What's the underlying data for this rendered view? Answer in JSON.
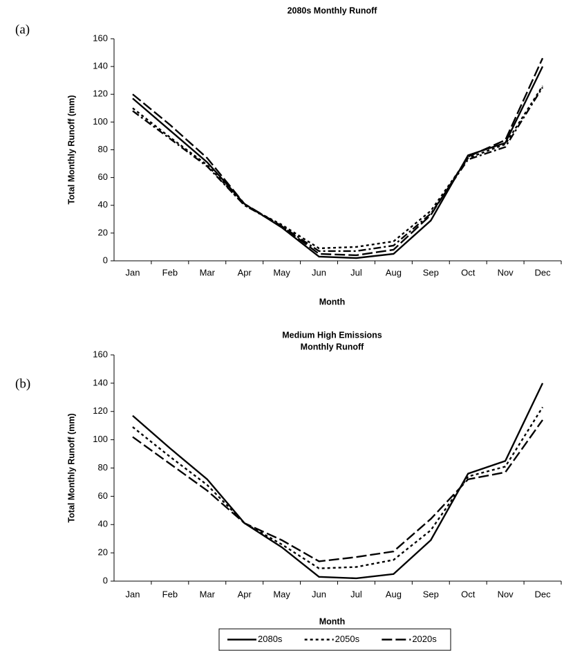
{
  "chart_data": [
    {
      "type": "line",
      "panel_label": "(a)",
      "title": "2080s Monthly Runoff",
      "x_label": "Month",
      "y_label": "Total Monthly Runoff (mm)",
      "categories": [
        "Jan",
        "Feb",
        "Mar",
        "Apr",
        "May",
        "Jun",
        "Jul",
        "Aug",
        "Sep",
        "Oct",
        "Nov",
        "Dec"
      ],
      "ylim": [
        0,
        160
      ],
      "yticks": [
        0,
        20,
        40,
        60,
        80,
        100,
        120,
        140,
        160
      ],
      "grid": false,
      "series": [
        {
          "color": "#000000",
          "dash": "solid",
          "values": [
            117,
            94,
            71,
            41,
            24,
            3,
            2,
            5,
            29,
            76,
            85,
            140
          ]
        },
        {
          "color": "#000000",
          "dash": "long",
          "values": [
            120,
            98,
            74,
            41,
            25,
            5,
            4,
            8,
            33,
            75,
            87,
            146
          ]
        },
        {
          "color": "#000000",
          "dash": "short",
          "values": [
            110,
            89,
            69,
            40,
            26,
            9,
            10,
            14,
            36,
            74,
            84,
            126
          ]
        },
        {
          "color": "#000000",
          "dash": "dashdot",
          "values": [
            108,
            88,
            68,
            40,
            25,
            7,
            7,
            11,
            34,
            73,
            82,
            125
          ]
        }
      ]
    },
    {
      "type": "line",
      "panel_label": "(b)",
      "title": [
        "Medium High Emissions",
        "Monthly Runoff"
      ],
      "x_label": "Month",
      "y_label": "Total Monthly Runoff (mm)",
      "categories": [
        "Jan",
        "Feb",
        "Mar",
        "Apr",
        "May",
        "Jun",
        "Jul",
        "Aug",
        "Sep",
        "Oct",
        "Nov",
        "Dec"
      ],
      "ylim": [
        0,
        160
      ],
      "yticks": [
        0,
        20,
        40,
        60,
        80,
        100,
        120,
        140,
        160
      ],
      "grid": false,
      "legend": "bottom",
      "series": [
        {
          "name": "2080s",
          "color": "#000000",
          "dash": "solid",
          "values": [
            117,
            94,
            72,
            41,
            24,
            3,
            2,
            5,
            29,
            76,
            85,
            140
          ]
        },
        {
          "name": "2050s",
          "color": "#000000",
          "dash": "short",
          "values": [
            109,
            88,
            68,
            41,
            26,
            9,
            10,
            15,
            36,
            74,
            81,
            123
          ]
        },
        {
          "name": "2020s",
          "color": "#000000",
          "dash": "long",
          "values": [
            102,
            83,
            64,
            41,
            29,
            14,
            17,
            21,
            44,
            72,
            77,
            114
          ]
        }
      ]
    }
  ]
}
